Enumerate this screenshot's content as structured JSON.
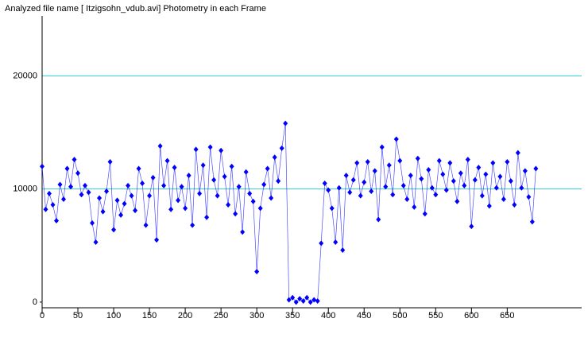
{
  "chart_data": {
    "type": "line",
    "title": "Analyzed file name [ Itzigsohn_vdub.avi]   Photometry in each Frame",
    "x": [
      0,
      5,
      10,
      15,
      20,
      25,
      30,
      35,
      40,
      45,
      50,
      55,
      60,
      65,
      70,
      75,
      80,
      85,
      90,
      95,
      100,
      105,
      110,
      115,
      120,
      125,
      130,
      135,
      140,
      145,
      150,
      155,
      160,
      165,
      170,
      175,
      180,
      185,
      190,
      195,
      200,
      205,
      210,
      215,
      220,
      225,
      230,
      235,
      240,
      245,
      250,
      255,
      260,
      265,
      270,
      275,
      280,
      285,
      290,
      295,
      300,
      305,
      310,
      315,
      320,
      325,
      330,
      335,
      340,
      345,
      350,
      355,
      360,
      365,
      370,
      375,
      380,
      385,
      390,
      395,
      400,
      405,
      410,
      415,
      420,
      425,
      430,
      435,
      440,
      445,
      450,
      455,
      460,
      465,
      470,
      475,
      480,
      485,
      490,
      495,
      500,
      505,
      510,
      515,
      520,
      525,
      530,
      535,
      540,
      545,
      550,
      555,
      560,
      565,
      570,
      575,
      580,
      585,
      590,
      595,
      600,
      605,
      610,
      615,
      620,
      625,
      630,
      635,
      640,
      645,
      650,
      655,
      660,
      665,
      670,
      675,
      680,
      685,
      690
    ],
    "series": [
      {
        "color": "#0000ff",
        "values": [
          12000,
          8200,
          9600,
          8600,
          7200,
          10400,
          9100,
          11800,
          10200,
          12600,
          11400,
          9500,
          10300,
          9700,
          7000,
          5300,
          9200,
          8000,
          9800,
          12400,
          6400,
          9000,
          7700,
          8700,
          10300,
          9400,
          8100,
          11800,
          10500,
          6800,
          9400,
          11000,
          5500,
          13800,
          10300,
          12500,
          8200,
          11900,
          9000,
          10200,
          8300,
          11200,
          6800,
          13500,
          9600,
          12100,
          7500,
          13700,
          10800,
          9400,
          13400,
          11100,
          8600,
          12000,
          7800,
          10200,
          6200,
          11500,
          9600,
          8900,
          2700,
          8300,
          10400,
          11800,
          9200,
          12800,
          10700,
          13600,
          15800,
          200,
          400,
          0,
          300,
          100,
          400,
          0,
          200,
          100,
          5200,
          10500,
          9900,
          8300,
          5300,
          10100,
          4600,
          11200,
          9700,
          10800,
          12300,
          9400,
          10600,
          12400,
          9800,
          11600,
          7300,
          13700,
          10200,
          12100,
          9500,
          14400,
          12500,
          10300,
          9100,
          11200,
          8400,
          12700,
          10900,
          7800,
          11700,
          10100,
          9500,
          12500,
          11300,
          9900,
          12300,
          10700,
          8900,
          11400,
          10300,
          12600,
          6700,
          10800,
          11900,
          9400,
          11300,
          8500,
          12300,
          10100,
          11100,
          9100,
          12400,
          10700,
          8600,
          13200,
          10100,
          11600,
          9300,
          7100,
          11800
        ]
      }
    ],
    "xlim": [
      0,
      754
    ],
    "ylim": [
      -500,
      25300
    ],
    "xticks": [
      0,
      50,
      100,
      150,
      200,
      250,
      300,
      350,
      400,
      450,
      500,
      550,
      600,
      650
    ],
    "yticks": [
      0,
      10000,
      20000
    ],
    "grid": true,
    "grid_color": "#33cccc"
  }
}
